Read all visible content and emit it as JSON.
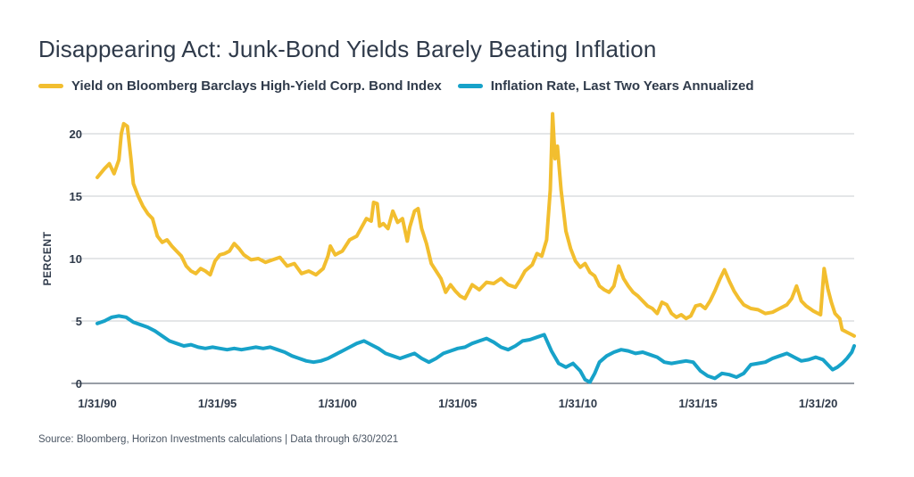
{
  "chart_data": {
    "type": "line",
    "title": "Disappearing Act: Junk-Bond Yields Barely Beating Inflation",
    "ylabel": "PERCENT",
    "xlabel": "",
    "ylim": [
      0,
      22
    ],
    "xlim": [
      1990.0,
      2021.5
    ],
    "y_ticks": [
      0,
      5,
      10,
      15,
      20
    ],
    "x_ticks": [
      {
        "x": 1990.0,
        "label": "1/31/90"
      },
      {
        "x": 1995.0,
        "label": "1/31/95"
      },
      {
        "x": 2000.0,
        "label": "1/31/00"
      },
      {
        "x": 2005.0,
        "label": "1/31/05"
      },
      {
        "x": 2010.0,
        "label": "1/31/10"
      },
      {
        "x": 2015.0,
        "label": "1/31/15"
      },
      {
        "x": 2020.0,
        "label": "1/31/20"
      }
    ],
    "grid": "horizontal",
    "legend_position": "top",
    "series": [
      {
        "name": "Yield on Bloomberg Barclays High-Yield Corp. Bond Index",
        "color": "#f2be2f",
        "points": [
          [
            1990.0,
            16.5
          ],
          [
            1990.3,
            17.2
          ],
          [
            1990.5,
            17.6
          ],
          [
            1990.7,
            16.8
          ],
          [
            1990.9,
            17.9
          ],
          [
            1991.0,
            20.0
          ],
          [
            1991.1,
            20.8
          ],
          [
            1991.25,
            20.6
          ],
          [
            1991.4,
            18.0
          ],
          [
            1991.5,
            16.0
          ],
          [
            1991.7,
            15.0
          ],
          [
            1991.9,
            14.2
          ],
          [
            1992.1,
            13.6
          ],
          [
            1992.3,
            13.2
          ],
          [
            1992.5,
            11.8
          ],
          [
            1992.7,
            11.3
          ],
          [
            1992.9,
            11.5
          ],
          [
            1993.1,
            11.0
          ],
          [
            1993.3,
            10.6
          ],
          [
            1993.5,
            10.2
          ],
          [
            1993.7,
            9.4
          ],
          [
            1993.9,
            9.0
          ],
          [
            1994.1,
            8.8
          ],
          [
            1994.3,
            9.2
          ],
          [
            1994.5,
            9.0
          ],
          [
            1994.7,
            8.7
          ],
          [
            1994.9,
            9.8
          ],
          [
            1995.1,
            10.3
          ],
          [
            1995.3,
            10.4
          ],
          [
            1995.5,
            10.6
          ],
          [
            1995.7,
            11.2
          ],
          [
            1995.9,
            10.8
          ],
          [
            1996.1,
            10.3
          ],
          [
            1996.4,
            9.9
          ],
          [
            1996.7,
            10.0
          ],
          [
            1997.0,
            9.7
          ],
          [
            1997.3,
            9.9
          ],
          [
            1997.6,
            10.1
          ],
          [
            1997.9,
            9.4
          ],
          [
            1998.2,
            9.6
          ],
          [
            1998.5,
            8.8
          ],
          [
            1998.8,
            9.0
          ],
          [
            1999.1,
            8.7
          ],
          [
            1999.4,
            9.2
          ],
          [
            1999.6,
            10.2
          ],
          [
            1999.7,
            11.0
          ],
          [
            1999.9,
            10.3
          ],
          [
            2000.2,
            10.6
          ],
          [
            2000.5,
            11.5
          ],
          [
            2000.8,
            11.8
          ],
          [
            2001.0,
            12.5
          ],
          [
            2001.2,
            13.2
          ],
          [
            2001.4,
            13.0
          ],
          [
            2001.5,
            14.5
          ],
          [
            2001.65,
            14.4
          ],
          [
            2001.75,
            12.6
          ],
          [
            2001.9,
            12.8
          ],
          [
            2002.1,
            12.4
          ],
          [
            2002.3,
            13.8
          ],
          [
            2002.5,
            12.9
          ],
          [
            2002.7,
            13.2
          ],
          [
            2002.9,
            11.4
          ],
          [
            2003.0,
            12.5
          ],
          [
            2003.2,
            13.8
          ],
          [
            2003.35,
            14.0
          ],
          [
            2003.5,
            12.4
          ],
          [
            2003.7,
            11.2
          ],
          [
            2003.9,
            9.6
          ],
          [
            2004.1,
            9.0
          ],
          [
            2004.3,
            8.4
          ],
          [
            2004.5,
            7.3
          ],
          [
            2004.7,
            7.9
          ],
          [
            2004.9,
            7.4
          ],
          [
            2005.1,
            7.0
          ],
          [
            2005.3,
            6.8
          ],
          [
            2005.6,
            7.9
          ],
          [
            2005.9,
            7.5
          ],
          [
            2006.2,
            8.1
          ],
          [
            2006.5,
            8.0
          ],
          [
            2006.8,
            8.4
          ],
          [
            2007.1,
            7.9
          ],
          [
            2007.4,
            7.7
          ],
          [
            2007.6,
            8.3
          ],
          [
            2007.8,
            9.0
          ],
          [
            2008.1,
            9.5
          ],
          [
            2008.3,
            10.4
          ],
          [
            2008.5,
            10.2
          ],
          [
            2008.7,
            11.5
          ],
          [
            2008.85,
            15.5
          ],
          [
            2008.95,
            21.6
          ],
          [
            2009.05,
            18.0
          ],
          [
            2009.15,
            19.0
          ],
          [
            2009.3,
            15.5
          ],
          [
            2009.5,
            12.2
          ],
          [
            2009.7,
            10.8
          ],
          [
            2009.9,
            9.8
          ],
          [
            2010.1,
            9.3
          ],
          [
            2010.3,
            9.6
          ],
          [
            2010.5,
            8.9
          ],
          [
            2010.7,
            8.6
          ],
          [
            2010.9,
            7.8
          ],
          [
            2011.1,
            7.5
          ],
          [
            2011.3,
            7.3
          ],
          [
            2011.5,
            7.8
          ],
          [
            2011.7,
            9.4
          ],
          [
            2011.9,
            8.4
          ],
          [
            2012.1,
            7.8
          ],
          [
            2012.3,
            7.3
          ],
          [
            2012.5,
            7.0
          ],
          [
            2012.7,
            6.6
          ],
          [
            2012.9,
            6.2
          ],
          [
            2013.1,
            6.0
          ],
          [
            2013.3,
            5.6
          ],
          [
            2013.5,
            6.5
          ],
          [
            2013.7,
            6.3
          ],
          [
            2013.9,
            5.6
          ],
          [
            2014.1,
            5.3
          ],
          [
            2014.3,
            5.5
          ],
          [
            2014.5,
            5.2
          ],
          [
            2014.7,
            5.4
          ],
          [
            2014.9,
            6.2
          ],
          [
            2015.1,
            6.3
          ],
          [
            2015.3,
            6.0
          ],
          [
            2015.5,
            6.6
          ],
          [
            2015.7,
            7.4
          ],
          [
            2015.9,
            8.3
          ],
          [
            2016.1,
            9.1
          ],
          [
            2016.3,
            8.2
          ],
          [
            2016.5,
            7.4
          ],
          [
            2016.7,
            6.8
          ],
          [
            2016.9,
            6.3
          ],
          [
            2017.2,
            6.0
          ],
          [
            2017.5,
            5.9
          ],
          [
            2017.8,
            5.6
          ],
          [
            2018.1,
            5.7
          ],
          [
            2018.4,
            6.0
          ],
          [
            2018.7,
            6.3
          ],
          [
            2018.9,
            6.8
          ],
          [
            2019.1,
            7.8
          ],
          [
            2019.3,
            6.6
          ],
          [
            2019.5,
            6.2
          ],
          [
            2019.8,
            5.8
          ],
          [
            2020.1,
            5.5
          ],
          [
            2020.25,
            9.2
          ],
          [
            2020.4,
            7.6
          ],
          [
            2020.55,
            6.5
          ],
          [
            2020.7,
            5.6
          ],
          [
            2020.9,
            5.2
          ],
          [
            2021.0,
            4.3
          ],
          [
            2021.2,
            4.1
          ],
          [
            2021.4,
            3.9
          ],
          [
            2021.5,
            3.8
          ]
        ]
      },
      {
        "name": "Inflation Rate, Last Two Years Annualized",
        "color": "#17a2c9",
        "points": [
          [
            1990.0,
            4.8
          ],
          [
            1990.3,
            5.0
          ],
          [
            1990.6,
            5.3
          ],
          [
            1990.9,
            5.4
          ],
          [
            1991.2,
            5.3
          ],
          [
            1991.5,
            4.9
          ],
          [
            1991.8,
            4.7
          ],
          [
            1992.1,
            4.5
          ],
          [
            1992.4,
            4.2
          ],
          [
            1992.7,
            3.8
          ],
          [
            1993.0,
            3.4
          ],
          [
            1993.3,
            3.2
          ],
          [
            1993.6,
            3.0
          ],
          [
            1993.9,
            3.1
          ],
          [
            1994.2,
            2.9
          ],
          [
            1994.5,
            2.8
          ],
          [
            1994.8,
            2.9
          ],
          [
            1995.1,
            2.8
          ],
          [
            1995.4,
            2.7
          ],
          [
            1995.7,
            2.8
          ],
          [
            1996.0,
            2.7
          ],
          [
            1996.3,
            2.8
          ],
          [
            1996.6,
            2.9
          ],
          [
            1996.9,
            2.8
          ],
          [
            1997.2,
            2.9
          ],
          [
            1997.5,
            2.7
          ],
          [
            1997.8,
            2.5
          ],
          [
            1998.1,
            2.2
          ],
          [
            1998.4,
            2.0
          ],
          [
            1998.7,
            1.8
          ],
          [
            1999.0,
            1.7
          ],
          [
            1999.3,
            1.8
          ],
          [
            1999.6,
            2.0
          ],
          [
            1999.9,
            2.3
          ],
          [
            2000.2,
            2.6
          ],
          [
            2000.5,
            2.9
          ],
          [
            2000.8,
            3.2
          ],
          [
            2001.1,
            3.4
          ],
          [
            2001.4,
            3.1
          ],
          [
            2001.7,
            2.8
          ],
          [
            2002.0,
            2.4
          ],
          [
            2002.3,
            2.2
          ],
          [
            2002.6,
            2.0
          ],
          [
            2002.9,
            2.2
          ],
          [
            2003.2,
            2.4
          ],
          [
            2003.5,
            2.0
          ],
          [
            2003.8,
            1.7
          ],
          [
            2004.1,
            2.0
          ],
          [
            2004.4,
            2.4
          ],
          [
            2004.7,
            2.6
          ],
          [
            2005.0,
            2.8
          ],
          [
            2005.3,
            2.9
          ],
          [
            2005.6,
            3.2
          ],
          [
            2005.9,
            3.4
          ],
          [
            2006.2,
            3.6
          ],
          [
            2006.5,
            3.3
          ],
          [
            2006.8,
            2.9
          ],
          [
            2007.1,
            2.7
          ],
          [
            2007.4,
            3.0
          ],
          [
            2007.7,
            3.4
          ],
          [
            2008.0,
            3.5
          ],
          [
            2008.3,
            3.7
          ],
          [
            2008.6,
            3.9
          ],
          [
            2008.9,
            2.6
          ],
          [
            2009.2,
            1.6
          ],
          [
            2009.5,
            1.3
          ],
          [
            2009.8,
            1.6
          ],
          [
            2010.1,
            1.0
          ],
          [
            2010.3,
            0.3
          ],
          [
            2010.5,
            0.1
          ],
          [
            2010.7,
            0.8
          ],
          [
            2010.9,
            1.7
          ],
          [
            2011.2,
            2.2
          ],
          [
            2011.5,
            2.5
          ],
          [
            2011.8,
            2.7
          ],
          [
            2012.1,
            2.6
          ],
          [
            2012.4,
            2.4
          ],
          [
            2012.7,
            2.5
          ],
          [
            2013.0,
            2.3
          ],
          [
            2013.3,
            2.1
          ],
          [
            2013.6,
            1.7
          ],
          [
            2013.9,
            1.6
          ],
          [
            2014.2,
            1.7
          ],
          [
            2014.5,
            1.8
          ],
          [
            2014.8,
            1.7
          ],
          [
            2015.1,
            1.0
          ],
          [
            2015.4,
            0.6
          ],
          [
            2015.7,
            0.4
          ],
          [
            2016.0,
            0.8
          ],
          [
            2016.3,
            0.7
          ],
          [
            2016.6,
            0.5
          ],
          [
            2016.9,
            0.8
          ],
          [
            2017.2,
            1.5
          ],
          [
            2017.5,
            1.6
          ],
          [
            2017.8,
            1.7
          ],
          [
            2018.1,
            2.0
          ],
          [
            2018.4,
            2.2
          ],
          [
            2018.7,
            2.4
          ],
          [
            2019.0,
            2.1
          ],
          [
            2019.3,
            1.8
          ],
          [
            2019.6,
            1.9
          ],
          [
            2019.9,
            2.1
          ],
          [
            2020.2,
            1.9
          ],
          [
            2020.4,
            1.5
          ],
          [
            2020.6,
            1.1
          ],
          [
            2020.8,
            1.3
          ],
          [
            2021.0,
            1.6
          ],
          [
            2021.2,
            2.0
          ],
          [
            2021.4,
            2.5
          ],
          [
            2021.5,
            3.0
          ]
        ]
      }
    ]
  },
  "source": "Source:  Bloomberg, Horizon Investments calculations | Data through 6/30/2021"
}
